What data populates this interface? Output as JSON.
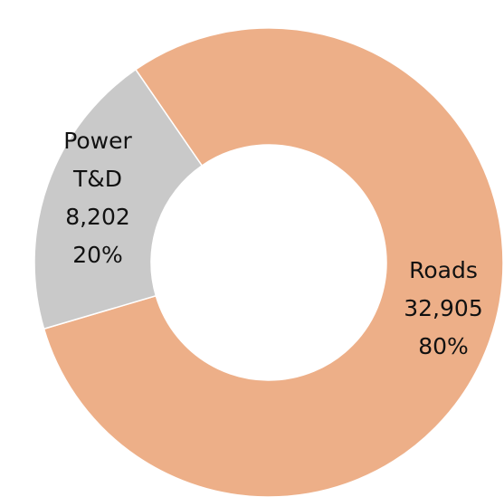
{
  "chart_data": {
    "type": "donut",
    "categories": [
      "Roads",
      "Power T&D"
    ],
    "values": [
      32905,
      8202
    ],
    "value_labels": [
      "32,905",
      "8,202"
    ],
    "percent_labels": [
      "80%",
      "20%"
    ],
    "colors": [
      "#edaf88",
      "#c9c9c9"
    ]
  }
}
